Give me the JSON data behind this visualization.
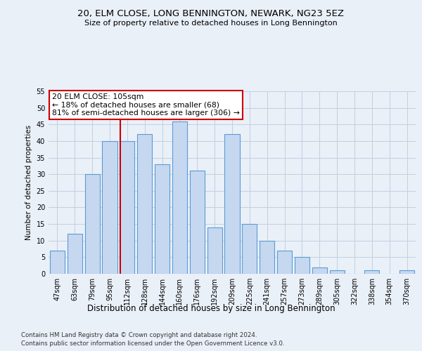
{
  "title": "20, ELM CLOSE, LONG BENNINGTON, NEWARK, NG23 5EZ",
  "subtitle": "Size of property relative to detached houses in Long Bennington",
  "xlabel": "Distribution of detached houses by size in Long Bennington",
  "ylabel": "Number of detached properties",
  "categories": [
    "47sqm",
    "63sqm",
    "79sqm",
    "95sqm",
    "112sqm",
    "128sqm",
    "144sqm",
    "160sqm",
    "176sqm",
    "192sqm",
    "209sqm",
    "225sqm",
    "241sqm",
    "257sqm",
    "273sqm",
    "289sqm",
    "305sqm",
    "322sqm",
    "338sqm",
    "354sqm",
    "370sqm"
  ],
  "values": [
    7,
    12,
    30,
    40,
    40,
    42,
    33,
    46,
    31,
    14,
    42,
    15,
    10,
    7,
    5,
    2,
    1,
    0,
    1,
    0,
    1
  ],
  "bar_color": "#c5d8f0",
  "bar_edge_color": "#5b9bd5",
  "vline_x": 3.62,
  "vline_color": "#cc0000",
  "annotation_text": "20 ELM CLOSE: 105sqm\n← 18% of detached houses are smaller (68)\n81% of semi-detached houses are larger (306) →",
  "annotation_box_color": "#ffffff",
  "annotation_box_edge": "#cc0000",
  "ylim": [
    0,
    55
  ],
  "yticks": [
    0,
    5,
    10,
    15,
    20,
    25,
    30,
    35,
    40,
    45,
    50,
    55
  ],
  "grid_color": "#c0cfe0",
  "bg_color": "#eaf0f8",
  "footer1": "Contains HM Land Registry data © Crown copyright and database right 2024.",
  "footer2": "Contains public sector information licensed under the Open Government Licence v3.0."
}
